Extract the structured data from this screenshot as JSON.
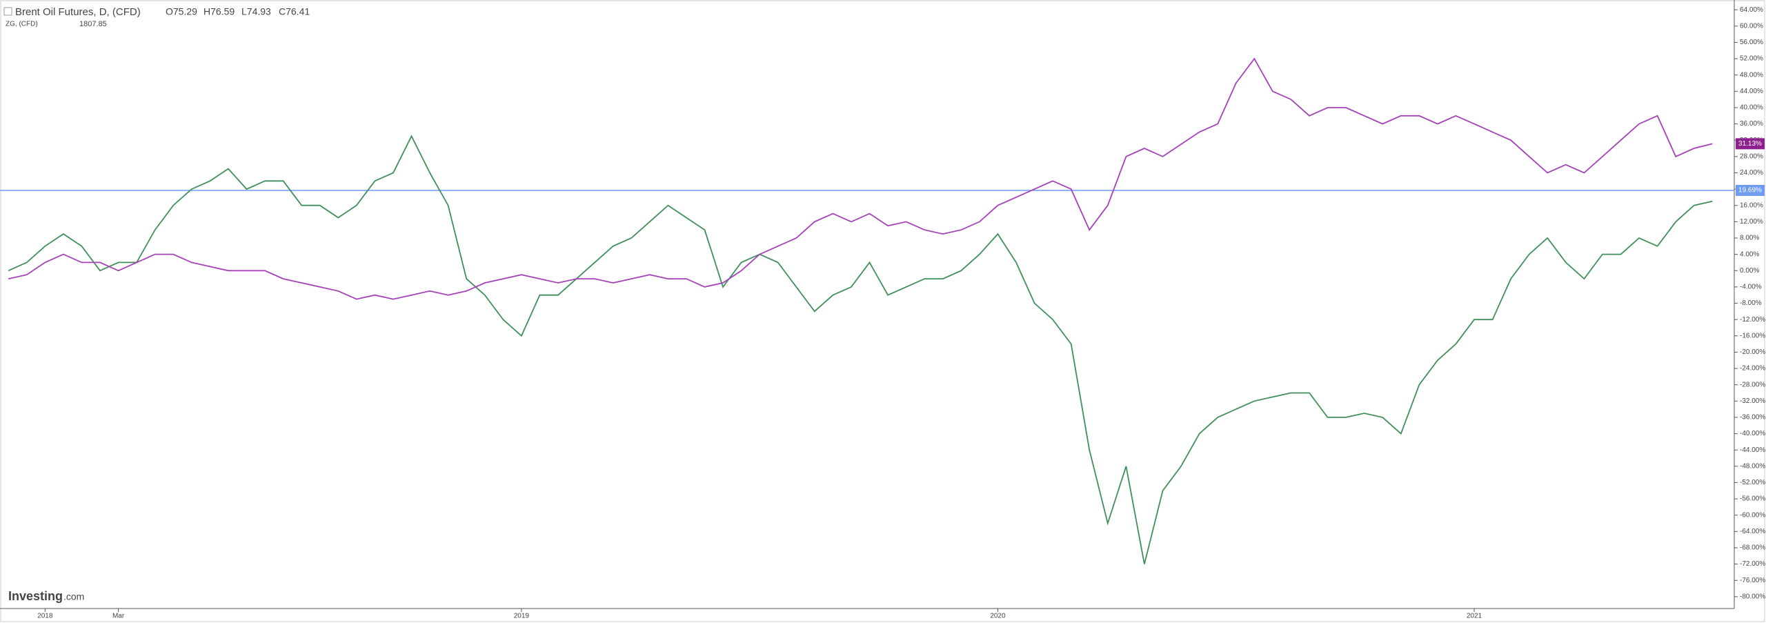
{
  "header": {
    "title": "Brent Oil Futures, D, (CFD)",
    "open": "O75.29",
    "high": "H76.59",
    "low": "L74.93",
    "close": "C76.41",
    "second_title": "ZG, (CFD)",
    "second_value": "1807.85"
  },
  "logo": {
    "brand": "Investing",
    "suffix": ".com"
  },
  "chart_data": {
    "type": "line",
    "categories": [
      null,
      null,
      "2018",
      null,
      null,
      null,
      "Mar",
      null,
      null,
      null,
      null,
      null,
      null,
      null,
      null,
      null,
      null,
      null,
      null,
      null,
      null,
      null,
      null,
      null,
      null,
      null,
      null,
      null,
      "2019",
      null,
      null,
      null,
      null,
      null,
      null,
      null,
      null,
      null,
      null,
      null,
      null,
      null,
      null,
      null,
      null,
      null,
      null,
      null,
      null,
      null,
      null,
      null,
      null,
      null,
      "2020",
      null,
      null,
      null,
      null,
      null,
      null,
      null,
      null,
      null,
      null,
      null,
      null,
      null,
      null,
      null,
      null,
      null,
      null,
      null,
      null,
      null,
      null,
      null,
      null,
      null,
      "2021",
      null,
      null,
      null,
      null,
      null,
      null,
      null,
      null,
      null,
      null,
      null,
      null,
      null
    ],
    "series": [
      {
        "name": "Brent Oil Futures",
        "color": "#3f8f5a",
        "values": [
          0,
          2,
          6,
          9,
          6,
          0,
          2,
          2,
          10,
          16,
          20,
          22,
          25,
          20,
          22,
          22,
          16,
          16,
          13,
          16,
          22,
          24,
          33,
          24,
          16,
          -2,
          -6,
          -12,
          -16,
          -6,
          -6,
          -2,
          2,
          6,
          8,
          12,
          16,
          13,
          10,
          -4,
          2,
          4,
          2,
          -4,
          -10,
          -6,
          -4,
          2,
          -6,
          -4,
          -2,
          -2,
          0,
          4,
          9,
          2,
          -8,
          -12,
          -18,
          -44,
          -62,
          -48,
          -72,
          -54,
          -48,
          -40,
          -36,
          -34,
          -32,
          -31,
          -30,
          -30,
          -36,
          -36,
          -35,
          -36,
          -40,
          -28,
          -22,
          -18,
          -12,
          -12,
          -2,
          4,
          8,
          2,
          -2,
          4,
          4,
          8,
          6,
          12,
          16,
          17
        ]
      },
      {
        "name": "ZG",
        "color": "#a440b8",
        "values": [
          -2,
          -1,
          2,
          4,
          2,
          2,
          0,
          2,
          4,
          4,
          2,
          1,
          0,
          0,
          0,
          -2,
          -3,
          -4,
          -5,
          -7,
          -6,
          -7,
          -6,
          -5,
          -6,
          -5,
          -3,
          -2,
          -1,
          -2,
          -3,
          -2,
          -2,
          -3,
          -2,
          -1,
          -2,
          -2,
          -4,
          -3,
          0,
          4,
          6,
          8,
          12,
          14,
          12,
          14,
          11,
          12,
          10,
          9,
          10,
          12,
          16,
          18,
          20,
          22,
          20,
          10,
          16,
          28,
          30,
          28,
          31,
          34,
          36,
          46,
          52,
          44,
          42,
          38,
          40,
          40,
          38,
          36,
          38,
          38,
          36,
          38,
          36,
          34,
          32,
          28,
          24,
          26,
          24,
          28,
          32,
          36,
          38,
          28,
          30,
          31.13
        ]
      }
    ],
    "ylim": [
      -82.9,
      66.4
    ],
    "yticks": [
      {
        "value": 64,
        "label": "64.00%"
      },
      {
        "value": 60,
        "label": "60.00%"
      },
      {
        "value": 56,
        "label": "56.00%"
      },
      {
        "value": 52,
        "label": "52.00%"
      },
      {
        "value": 48,
        "label": "48.00%"
      },
      {
        "value": 44,
        "label": "44.00%"
      },
      {
        "value": 40,
        "label": "40.00%"
      },
      {
        "value": 36,
        "label": "36.00%"
      },
      {
        "value": 32,
        "label": "32.00%"
      },
      {
        "value": 28,
        "label": "28.00%"
      },
      {
        "value": 24,
        "label": "24.00%"
      },
      {
        "value": 20,
        "label": "20.00%"
      },
      {
        "value": 16,
        "label": "16.00%"
      },
      {
        "value": 12,
        "label": "12.00%"
      },
      {
        "value": 8,
        "label": "8.00%"
      },
      {
        "value": 4,
        "label": "4.00%"
      },
      {
        "value": 0,
        "label": "0.00%"
      },
      {
        "value": -4,
        "label": "-4.00%"
      },
      {
        "value": -8,
        "label": "-8.00%"
      },
      {
        "value": -12,
        "label": "-12.00%"
      },
      {
        "value": -16,
        "label": "-16.00%"
      },
      {
        "value": -20,
        "label": "-20.00%"
      },
      {
        "value": -24,
        "label": "-24.00%"
      },
      {
        "value": -28,
        "label": "-28.00%"
      },
      {
        "value": -32,
        "label": "-32.00%"
      },
      {
        "value": -36,
        "label": "-36.00%"
      },
      {
        "value": -40,
        "label": "-40.00%"
      },
      {
        "value": -44,
        "label": "-44.00%"
      },
      {
        "value": -48,
        "label": "-48.00%"
      },
      {
        "value": -52,
        "label": "-52.00%"
      },
      {
        "value": -56,
        "label": "-56.00%"
      },
      {
        "value": -60,
        "label": "-60.00%"
      },
      {
        "value": -64,
        "label": "-64.00%"
      },
      {
        "value": -68,
        "label": "-68.00%"
      },
      {
        "value": -72,
        "label": "-72.00%"
      },
      {
        "value": -76,
        "label": "-76.00%"
      },
      {
        "value": -80,
        "label": "-80.00%"
      }
    ],
    "hline": {
      "value": 19.69,
      "label": "19.69%",
      "color": "#6f9cf0"
    },
    "last_label": {
      "value": 31.13,
      "label": "31.13%",
      "color": "#8e1f8e"
    },
    "grid": false
  }
}
